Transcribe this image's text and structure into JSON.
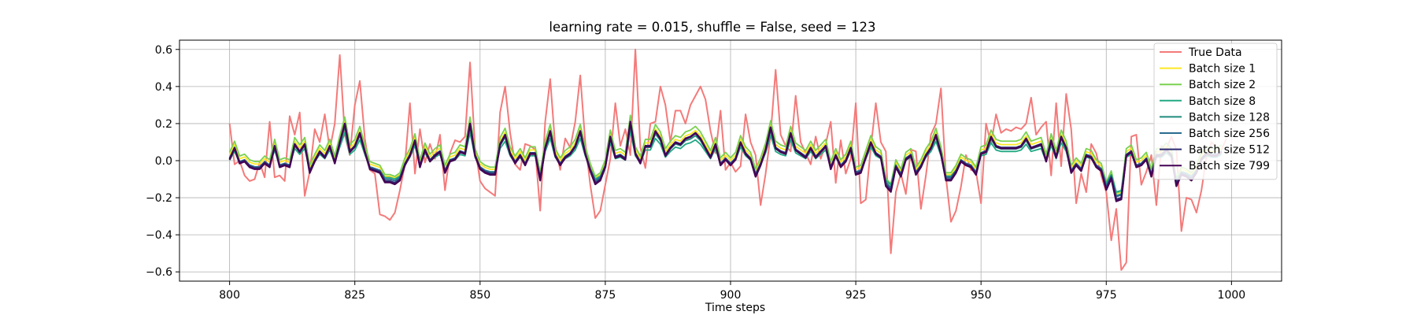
{
  "chart_data": {
    "type": "line",
    "title": "learning rate = 0.015, shuffle = False, seed = 123",
    "xlabel": "Time steps",
    "ylabel": "",
    "xlim": [
      790,
      1010
    ],
    "ylim": [
      -0.65,
      0.65
    ],
    "xticks": [
      800,
      825,
      850,
      875,
      900,
      925,
      950,
      975,
      1000
    ],
    "yticks": [
      -0.6,
      -0.4,
      -0.2,
      0.0,
      0.2,
      0.4,
      0.6
    ],
    "grid": true,
    "legend_position": "top-right",
    "x_start": 800,
    "true_data": {
      "name": "True Data",
      "color": "#f47a7a",
      "values": [
        0.2,
        -0.02,
        0.0,
        -0.08,
        -0.11,
        -0.1,
        -0.01,
        -0.09,
        0.21,
        -0.09,
        -0.08,
        -0.11,
        0.24,
        0.14,
        0.26,
        -0.19,
        -0.06,
        0.17,
        0.1,
        0.25,
        0.06,
        0.2,
        0.57,
        0.14,
        0.03,
        0.3,
        0.43,
        0.12,
        -0.05,
        -0.07,
        -0.29,
        -0.3,
        -0.32,
        -0.28,
        -0.16,
        -0.02,
        0.31,
        -0.07,
        0.17,
        -0.01,
        0.09,
        0.01,
        0.14,
        -0.16,
        0.04,
        0.11,
        0.1,
        0.13,
        0.53,
        0.07,
        -0.11,
        -0.15,
        -0.17,
        -0.19,
        0.26,
        0.4,
        0.15,
        -0.02,
        -0.05,
        0.09,
        0.08,
        0.06,
        -0.27,
        0.21,
        0.44,
        0.08,
        -0.05,
        0.12,
        0.07,
        0.21,
        0.46,
        0.1,
        -0.13,
        -0.31,
        -0.27,
        -0.13,
        0.01,
        0.31,
        0.08,
        0.17,
        0.03,
        0.6,
        0.07,
        -0.04,
        0.2,
        0.21,
        0.4,
        0.3,
        0.1,
        0.27,
        0.27,
        0.2,
        0.3,
        0.35,
        0.4,
        0.33,
        0.16,
        0.04,
        0.27,
        -0.05,
        -0.01,
        -0.06,
        -0.03,
        0.25,
        0.1,
        0.03,
        -0.24,
        -0.07,
        0.14,
        0.49,
        0.14,
        0.08,
        0.05,
        0.35,
        0.1,
        0.04,
        -0.02,
        0.13,
        0.01,
        0.09,
        0.21,
        -0.12,
        0.11,
        -0.07,
        0.01,
        0.31,
        -0.23,
        -0.21,
        0.07,
        0.31,
        0.1,
        0.05,
        -0.5,
        -0.17,
        -0.07,
        -0.18,
        0.06,
        0.05,
        -0.26,
        -0.08,
        0.14,
        0.2,
        0.39,
        -0.09,
        -0.33,
        -0.27,
        -0.14,
        0.03,
        -0.05,
        -0.06,
        -0.23,
        0.2,
        0.09,
        0.25,
        0.15,
        0.17,
        0.16,
        0.18,
        0.17,
        0.2,
        0.34,
        0.14,
        0.18,
        0.21,
        -0.08,
        0.31,
        -0.03,
        0.36,
        0.17,
        -0.23,
        -0.07,
        -0.17,
        0.09,
        0.04,
        -0.08,
        -0.17,
        -0.43,
        -0.26,
        -0.59,
        -0.55,
        0.13,
        0.14,
        -0.13,
        -0.06,
        0.03,
        -0.24,
        0.08,
        0.06,
        0.13,
        0.06,
        -0.38,
        -0.2,
        -0.21,
        -0.28,
        -0.16,
        0.02,
        0.1,
        0.07,
        0.06,
        0.12
      ]
    },
    "series": [
      {
        "name": "Batch size 1",
        "color": "#fde725",
        "offset": 0.02,
        "scale": 0.95
      },
      {
        "name": "Batch size 2",
        "color": "#7ad151",
        "offset": 0.035,
        "scale": 1.0
      },
      {
        "name": "Batch size 8",
        "color": "#22a884",
        "offset": -0.005,
        "scale": 0.78
      },
      {
        "name": "Batch size 128",
        "color": "#1f8c7c",
        "offset": 0.0,
        "scale": 0.9
      },
      {
        "name": "Batch size 256",
        "color": "#2a6c8e",
        "offset": 0.005,
        "scale": 0.95
      },
      {
        "name": "Batch size 512",
        "color": "#2c2a72",
        "offset": 0.0,
        "scale": 1.0
      },
      {
        "name": "Batch size 799",
        "color": "#440154",
        "offset": -0.005,
        "scale": 1.02
      }
    ],
    "prediction_base": [
      0.01,
      0.07,
      -0.01,
      0.0,
      -0.03,
      -0.04,
      -0.04,
      -0.01,
      -0.03,
      0.08,
      -0.03,
      -0.02,
      -0.03,
      0.09,
      0.05,
      0.09,
      -0.06,
      0.0,
      0.05,
      0.02,
      0.08,
      -0.01,
      0.1,
      0.2,
      0.05,
      0.08,
      0.15,
      0.05,
      -0.04,
      -0.05,
      -0.06,
      -0.11,
      -0.11,
      -0.12,
      -0.1,
      -0.02,
      0.03,
      0.11,
      -0.03,
      0.06,
      0.0,
      0.03,
      0.05,
      -0.06,
      0.0,
      0.01,
      0.05,
      0.04,
      0.2,
      0.03,
      -0.04,
      -0.06,
      -0.07,
      -0.07,
      0.09,
      0.14,
      0.04,
      -0.01,
      0.03,
      -0.02,
      0.04,
      0.04,
      -0.1,
      0.07,
      0.16,
      0.03,
      -0.02,
      0.02,
      0.04,
      0.08,
      0.16,
      0.04,
      -0.05,
      -0.12,
      -0.1,
      -0.03,
      0.13,
      0.02,
      0.03,
      0.01,
      0.21,
      0.04,
      -0.01,
      0.08,
      0.08,
      0.16,
      0.12,
      0.03,
      0.07,
      0.1,
      0.09,
      0.12,
      0.13,
      0.15,
      0.12,
      0.07,
      0.02,
      0.09,
      -0.02,
      0.01,
      -0.02,
      0.01,
      0.1,
      0.04,
      0.01,
      -0.08,
      -0.02,
      0.06,
      0.18,
      0.07,
      0.05,
      0.04,
      0.15,
      0.06,
      0.04,
      0.02,
      0.07,
      0.02,
      0.05,
      0.08,
      -0.04,
      0.03,
      -0.03,
      0.0,
      0.07,
      -0.07,
      -0.06,
      0.02,
      0.1,
      0.04,
      0.02,
      -0.13,
      -0.16,
      -0.03,
      -0.08,
      0.01,
      0.03,
      -0.07,
      -0.03,
      0.03,
      0.07,
      0.14,
      0.04,
      -0.1,
      -0.1,
      -0.06,
      0.0,
      -0.02,
      -0.03,
      -0.07,
      0.04,
      0.05,
      0.13,
      0.08,
      0.07,
      0.07,
      0.07,
      0.07,
      0.08,
      0.12,
      0.07,
      0.08,
      0.09,
      0.0,
      0.11,
      0.02,
      0.13,
      0.07,
      -0.06,
      -0.02,
      -0.05,
      0.03,
      0.02,
      -0.03,
      -0.05,
      -0.15,
      -0.09,
      -0.21,
      -0.2,
      0.03,
      0.05,
      -0.03,
      -0.02,
      0.01,
      -0.08,
      0.03,
      0.03,
      0.06,
      0.03,
      -0.13,
      -0.07,
      -0.08,
      -0.1,
      -0.06,
      0.01,
      0.04,
      0.03,
      0.03,
      0.05
    ]
  }
}
